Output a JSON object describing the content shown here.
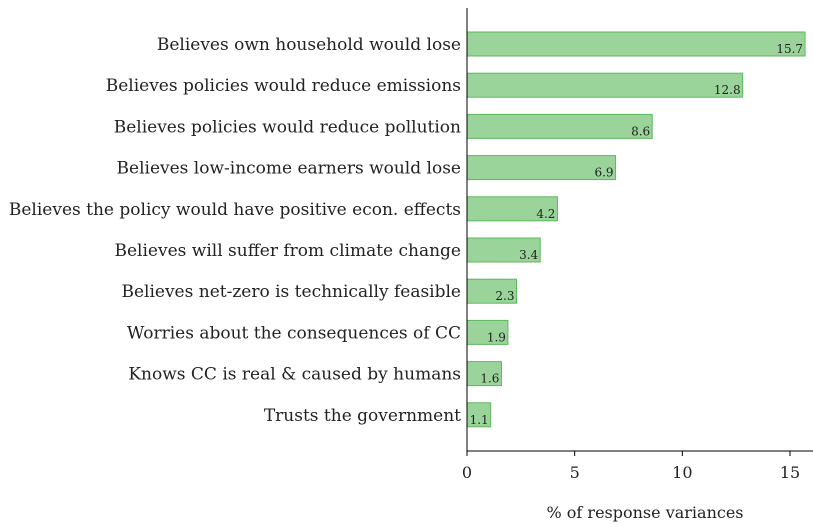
{
  "chart_data": {
    "type": "bar",
    "orientation": "horizontal",
    "categories": [
      "Believes own household would lose",
      "Believes policies would reduce emissions",
      "Believes policies would reduce pollution",
      "Believes low-income earners would lose",
      "Believes the policy would have positive econ. effects",
      "Believes will suffer from climate change",
      "Believes net-zero is technically feasible",
      "Worries about the consequences of CC",
      "Knows CC is real & caused by humans",
      "Trusts the government"
    ],
    "values": [
      15.7,
      12.8,
      8.6,
      6.9,
      4.2,
      3.4,
      2.3,
      1.9,
      1.6,
      1.1
    ],
    "value_labels": [
      "15.7",
      "12.8",
      "8.6",
      "6.9",
      "4.2",
      "3.4",
      "2.3",
      "1.9",
      "1.6",
      "1.1"
    ],
    "xlabel": "% of response variances",
    "ylabel": "",
    "xlim": [
      0,
      16.2
    ],
    "xticks": [
      0,
      5,
      10,
      15
    ],
    "xtick_labels": [
      "0",
      "5",
      "10",
      "15"
    ],
    "grid": false,
    "colors": {
      "bar_fill": "#9ad49a",
      "bar_edge": "#5cb85c",
      "axis": "#000000"
    }
  }
}
